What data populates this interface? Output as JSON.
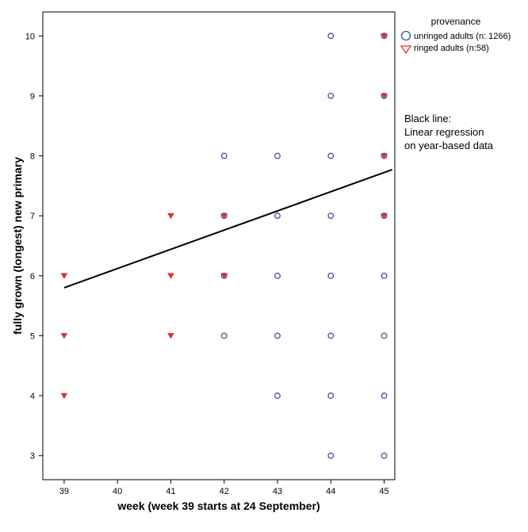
{
  "chart_data": {
    "type": "scatter",
    "xlabel": "week (week 39 starts at 24 September)",
    "ylabel": "fully grown (longest) new primary",
    "xlim": [
      38.6,
      45.2
    ],
    "ylim": [
      2.6,
      10.4
    ],
    "x_ticks": [
      39,
      40,
      41,
      42,
      43,
      44,
      45
    ],
    "y_ticks": [
      3,
      4,
      5,
      6,
      7,
      8,
      9,
      10
    ],
    "grid": false,
    "legend": {
      "title": "provenance",
      "placement": "outside-top-right",
      "entries": [
        "unringed adults (n: 1266)",
        "ringed adults (n:58)"
      ]
    },
    "annotation": [
      "Black line:",
      "Linear regression",
      "on year-based data"
    ],
    "series": [
      {
        "name": "unringed adults (n: 1266)",
        "marker": "circle",
        "color": "#3f4fa6",
        "points": [
          [
            42,
            5
          ],
          [
            42,
            6
          ],
          [
            42,
            7
          ],
          [
            42,
            8
          ],
          [
            43,
            4
          ],
          [
            43,
            5
          ],
          [
            43,
            6
          ],
          [
            43,
            7
          ],
          [
            43,
            8
          ],
          [
            44,
            3
          ],
          [
            44,
            4
          ],
          [
            44,
            5
          ],
          [
            44,
            6
          ],
          [
            44,
            7
          ],
          [
            44,
            8
          ],
          [
            44,
            9
          ],
          [
            44,
            10
          ],
          [
            45,
            3
          ],
          [
            45,
            4
          ],
          [
            45,
            5
          ],
          [
            45,
            6
          ],
          [
            45,
            7
          ],
          [
            45,
            8
          ],
          [
            45,
            9
          ],
          [
            45,
            10
          ]
        ]
      },
      {
        "name": "ringed adults (n:58)",
        "marker": "triangle-down",
        "color": "#e03030",
        "points": [
          [
            39,
            4
          ],
          [
            39,
            5
          ],
          [
            39,
            6
          ],
          [
            41,
            5
          ],
          [
            41,
            6
          ],
          [
            41,
            7
          ],
          [
            42,
            6
          ],
          [
            42,
            7
          ],
          [
            45,
            7
          ],
          [
            45,
            8
          ],
          [
            45,
            9
          ],
          [
            45,
            10
          ]
        ]
      }
    ],
    "regression_line": {
      "color": "#000000",
      "points": [
        [
          39,
          5.8
        ],
        [
          45.15,
          7.77
        ]
      ]
    }
  }
}
